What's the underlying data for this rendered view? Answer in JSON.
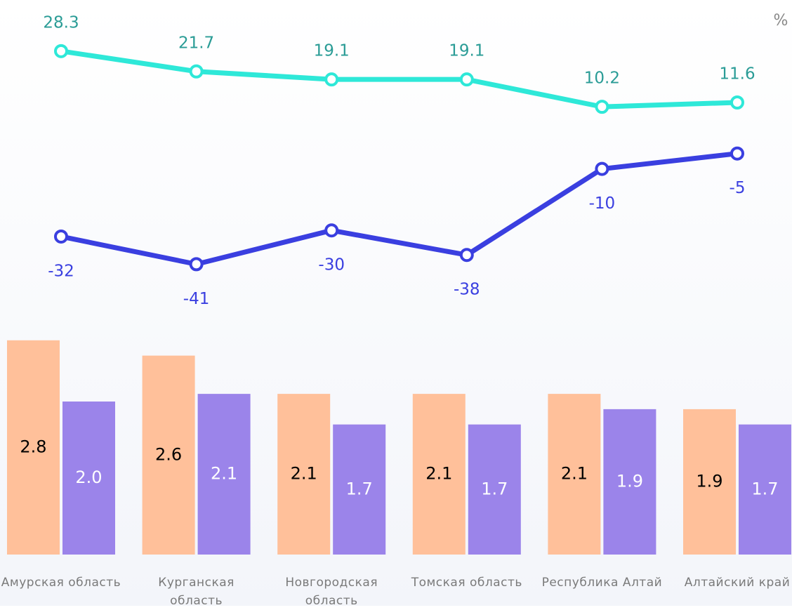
{
  "chart_data": [
    {
      "type": "line",
      "unit": "%",
      "ylim": [
        -50,
        35
      ],
      "series": [
        {
          "color": "#2ee8d8",
          "label_color": "#2a9c96",
          "values": [
            28.3,
            21.7,
            19.1,
            19.1,
            10.2,
            11.6
          ]
        },
        {
          "color": "#3a3fe0",
          "label_color": "#3a3fe0",
          "values": [
            -32,
            -41,
            -30,
            -38,
            -10,
            -5
          ]
        }
      ]
    },
    {
      "type": "bar",
      "ylim": [
        0,
        3
      ],
      "categories": [
        "Амурская область",
        "Курганская область",
        "Новгородская область",
        "Томская область",
        "Республика Алтай",
        "Алтайский край"
      ],
      "series": [
        {
          "color": "#ffc09a",
          "label_color": "#000000",
          "values": [
            2.8,
            2.6,
            2.1,
            2.1,
            2.1,
            1.9
          ],
          "value_labels": [
            "2.8",
            "2.6",
            "2.1",
            "2.1",
            "2.1",
            "1.9"
          ]
        },
        {
          "color": "#9b84ea",
          "label_color": "#ffffff",
          "values": [
            2.0,
            2.1,
            1.7,
            1.7,
            1.9,
            1.7
          ],
          "value_labels": [
            "2.0",
            "2.1",
            "1.7",
            "1.7",
            "1.9",
            "1.7"
          ]
        }
      ]
    }
  ]
}
